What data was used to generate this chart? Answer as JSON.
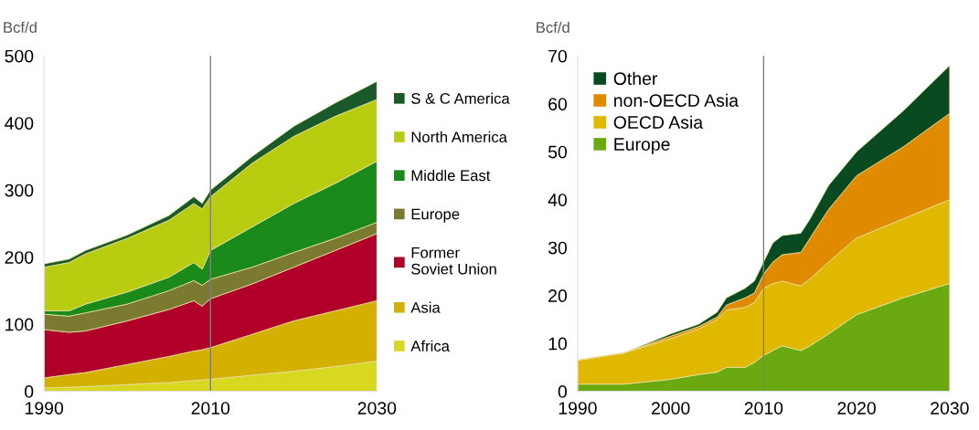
{
  "chart_data": [
    {
      "type": "area",
      "stacked": true,
      "ylabel": "Bcf/d",
      "x": [
        1990,
        1993,
        1995,
        2000,
        2005,
        2008,
        2009,
        2010,
        2015,
        2020,
        2025,
        2030
      ],
      "xlim": [
        1990,
        2030
      ],
      "xticks": [
        1990,
        2010,
        2030
      ],
      "ylim": [
        0,
        500
      ],
      "yticks": [
        0,
        100,
        200,
        300,
        400,
        500
      ],
      "grid": false,
      "legend": "right",
      "ref_lines": [
        {
          "axis": "x",
          "value": 2010,
          "color": "#808080"
        }
      ],
      "series": [
        {
          "name": "Africa",
          "color": "#d8d820",
          "values": [
            5,
            6,
            7,
            10,
            13,
            16,
            17,
            18,
            24,
            30,
            37,
            45
          ]
        },
        {
          "name": "Asia",
          "color": "#d4b000",
          "values": [
            15,
            19,
            21,
            30,
            39,
            44,
            45,
            47,
            61,
            75,
            83,
            90
          ]
        },
        {
          "name": "Former\nSoviet Union",
          "color": "#b0002a",
          "values": [
            72,
            63,
            62,
            65,
            70,
            75,
            65,
            73,
            75,
            80,
            90,
            100
          ]
        },
        {
          "name": "Europe",
          "color": "#7a7a30",
          "values": [
            23,
            24,
            27,
            25,
            28,
            30,
            31,
            29,
            25,
            22,
            18,
            17
          ]
        },
        {
          "name": "Middle East",
          "color": "#1a8a1a",
          "values": [
            5,
            8,
            13,
            18,
            20,
            27,
            24,
            43,
            60,
            73,
            82,
            91
          ]
        },
        {
          "name": "North America",
          "color": "#b8cc10",
          "values": [
            65,
            72,
            75,
            80,
            85,
            88,
            90,
            80,
            95,
            100,
            100,
            92
          ]
        },
        {
          "name": "S & C America",
          "color": "#1a5a2a",
          "values": [
            5,
            5,
            5,
            5,
            7,
            10,
            8,
            10,
            10,
            15,
            20,
            27
          ]
        }
      ]
    },
    {
      "type": "area",
      "stacked": true,
      "ylabel": "Bcf/d",
      "x": [
        1990,
        1995,
        2000,
        2003,
        2005,
        2006,
        2008,
        2009,
        2010,
        2011,
        2012,
        2014,
        2015,
        2017,
        2020,
        2025,
        2030
      ],
      "xlim": [
        1990,
        2030
      ],
      "xticks": [
        1990,
        2000,
        2010,
        2020,
        2030
      ],
      "ylim": [
        0,
        70
      ],
      "yticks": [
        0,
        10,
        20,
        30,
        40,
        50,
        60,
        70
      ],
      "grid": false,
      "legend": "top left",
      "ref_lines": [
        {
          "axis": "x",
          "value": 2010,
          "color": "#808080"
        }
      ],
      "series": [
        {
          "name": "Europe",
          "color": "#6aaa10",
          "values": [
            1.5,
            1.5,
            2.5,
            3.5,
            4,
            5,
            5,
            6,
            7.5,
            8.5,
            9.5,
            8.5,
            9.5,
            12,
            16,
            19.5,
            22.5
          ]
        },
        {
          "name": "OECD Asia",
          "color": "#e0b800",
          "values": [
            5,
            6.5,
            8.5,
            9.5,
            11,
            12,
            12.5,
            12.5,
            14,
            14,
            13.5,
            13.5,
            14,
            15,
            16,
            16.5,
            17.5
          ]
        },
        {
          "name": "non-OECD Asia",
          "color": "#e08a00",
          "values": [
            0,
            0,
            0.5,
            0.5,
            0.5,
            1,
            2,
            2,
            3,
            4.5,
            5.5,
            7,
            8.5,
            11,
            13,
            15,
            18
          ]
        },
        {
          "name": "Other",
          "color": "#0a4a20",
          "values": [
            0,
            0,
            0.5,
            0.5,
            1,
            1.5,
            2,
            2.5,
            2.5,
            4,
            4,
            4,
            4,
            5,
            5,
            7.5,
            10
          ]
        }
      ]
    }
  ]
}
